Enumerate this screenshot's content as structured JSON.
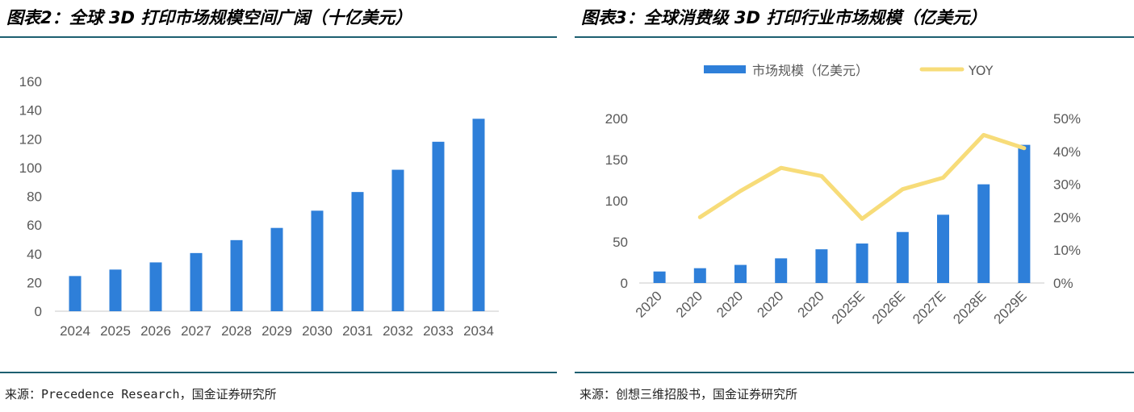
{
  "left": {
    "title": "图表2：全球 3D 打印市场规模空间广阔（十亿美元）",
    "source": "来源：Precedence Research，国金证券研究所"
  },
  "right": {
    "title": "图表3：全球消费级 3D 打印行业市场规模（亿美元）",
    "source": "来源：创想三维招股书，国金证券研究所"
  },
  "colors": {
    "bar": "#2e7fd9",
    "line": "#f7dc79",
    "rule": "#1d5f70",
    "axis": "#c9c9c9"
  },
  "chart_data": [
    {
      "type": "bar",
      "categories": [
        "2024",
        "2025",
        "2026",
        "2027",
        "2028",
        "2029",
        "2030",
        "2031",
        "2032",
        "2033",
        "2034"
      ],
      "values": [
        24.5,
        29,
        34,
        40.5,
        49.5,
        58,
        70,
        83,
        98.5,
        118,
        134
      ],
      "ylim": [
        0,
        160
      ],
      "yticks": [
        "0",
        "20",
        "40",
        "60",
        "80",
        "100",
        "120",
        "140",
        "160"
      ],
      "grid": false
    },
    {
      "type": "bar",
      "categories": [
        "2020",
        "2020",
        "2020",
        "2020",
        "2020",
        "2025E",
        "2026E",
        "2027E",
        "2028E",
        "2029E"
      ],
      "series": [
        {
          "name": "市场规模（亿美元）",
          "type": "bar",
          "axis": "left",
          "values": [
            14,
            18,
            22,
            30,
            41,
            48,
            62,
            83,
            120,
            168
          ]
        },
        {
          "name": "YOY",
          "type": "line",
          "axis": "right",
          "values": [
            null,
            0.2,
            0.28,
            0.35,
            0.325,
            0.195,
            0.285,
            0.32,
            0.45,
            0.41
          ]
        }
      ],
      "ylim": [
        0,
        200
      ],
      "yticks": [
        "0",
        "50",
        "100",
        "150",
        "200"
      ],
      "y2lim": [
        0,
        0.5
      ],
      "y2ticks": [
        "0%",
        "10%",
        "20%",
        "30%",
        "40%",
        "50%"
      ],
      "legend": "top",
      "grid": false
    }
  ]
}
